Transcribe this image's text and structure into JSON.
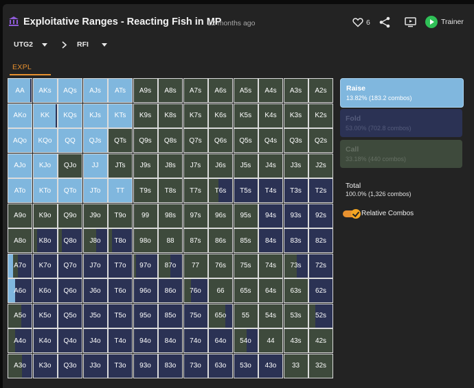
{
  "header": {
    "title": "Exploitative Ranges - Reacting Fish in MP",
    "time": "12 months ago",
    "likes": "6",
    "trainer_label": "Trainer",
    "icons": [
      "library-icon",
      "heart-icon",
      "share-icon",
      "screen-icon",
      "play-icon"
    ]
  },
  "breadcrumbs": {
    "position": "UTG2",
    "action": "RFI"
  },
  "tabs": [
    {
      "label": "EXPL",
      "active": true
    }
  ],
  "colors": {
    "raise": "#80b7de",
    "fold": "#2b3254",
    "call": "#3e4a3c",
    "accent": "#e8912f"
  },
  "legend": {
    "items": [
      {
        "name": "Raise",
        "value": "13.82% (183.2 combos)"
      },
      {
        "name": "Fold",
        "value": "53.00% (702.8 combos)"
      },
      {
        "name": "Call",
        "value": "33.18% (440 combos)"
      }
    ],
    "total_label": "Total",
    "total_value": "100.0% (1,326 combos)",
    "relative_label": "Relative Combos",
    "relative_on": true
  },
  "grid": {
    "rows": [
      [
        {
          "hand": "AA",
          "r": 0.95,
          "c": 0
        },
        {
          "hand": "AKs",
          "r": 1,
          "c": 0
        },
        {
          "hand": "AQs",
          "r": 1,
          "c": 0
        },
        {
          "hand": "AJs",
          "r": 1,
          "c": 0
        },
        {
          "hand": "ATs",
          "r": 1,
          "c": 0
        },
        {
          "hand": "A9s",
          "r": 0,
          "c": 1
        },
        {
          "hand": "A8s",
          "r": 0,
          "c": 1
        },
        {
          "hand": "A7s",
          "r": 0,
          "c": 1
        },
        {
          "hand": "A6s",
          "r": 0,
          "c": 1
        },
        {
          "hand": "A5s",
          "r": 0,
          "c": 1
        },
        {
          "hand": "A4s",
          "r": 0,
          "c": 1
        },
        {
          "hand": "A3s",
          "r": 0,
          "c": 1
        },
        {
          "hand": "A2s",
          "r": 0,
          "c": 1
        }
      ],
      [
        {
          "hand": "AKo",
          "r": 1,
          "c": 0
        },
        {
          "hand": "KK",
          "r": 0.95,
          "c": 0
        },
        {
          "hand": "KQs",
          "r": 1,
          "c": 0
        },
        {
          "hand": "KJs",
          "r": 1,
          "c": 0
        },
        {
          "hand": "KTs",
          "r": 1,
          "c": 0
        },
        {
          "hand": "K9s",
          "r": 0,
          "c": 1
        },
        {
          "hand": "K8s",
          "r": 0,
          "c": 1
        },
        {
          "hand": "K7s",
          "r": 0,
          "c": 1
        },
        {
          "hand": "K6s",
          "r": 0,
          "c": 1
        },
        {
          "hand": "K5s",
          "r": 0,
          "c": 1
        },
        {
          "hand": "K4s",
          "r": 0,
          "c": 1
        },
        {
          "hand": "K3s",
          "r": 0,
          "c": 1
        },
        {
          "hand": "K2s",
          "r": 0,
          "c": 1
        }
      ],
      [
        {
          "hand": "AQo",
          "r": 1,
          "c": 0
        },
        {
          "hand": "KQo",
          "r": 1,
          "c": 0
        },
        {
          "hand": "QQ",
          "r": 1,
          "c": 0
        },
        {
          "hand": "QJs",
          "r": 1,
          "c": 0
        },
        {
          "hand": "QTs",
          "r": 0,
          "c": 1
        },
        {
          "hand": "Q9s",
          "r": 0,
          "c": 1
        },
        {
          "hand": "Q8s",
          "r": 0,
          "c": 1
        },
        {
          "hand": "Q7s",
          "r": 0,
          "c": 1
        },
        {
          "hand": "Q6s",
          "r": 0,
          "c": 1
        },
        {
          "hand": "Q5s",
          "r": 0,
          "c": 1
        },
        {
          "hand": "Q4s",
          "r": 0,
          "c": 1
        },
        {
          "hand": "Q3s",
          "r": 0,
          "c": 1
        },
        {
          "hand": "Q2s",
          "r": 0,
          "c": 1
        }
      ],
      [
        {
          "hand": "AJo",
          "r": 1,
          "c": 0
        },
        {
          "hand": "KJo",
          "r": 1,
          "c": 0
        },
        {
          "hand": "QJo",
          "r": 0,
          "c": 1
        },
        {
          "hand": "JJ",
          "r": 1,
          "c": 0
        },
        {
          "hand": "JTs",
          "r": 0,
          "c": 1
        },
        {
          "hand": "J9s",
          "r": 0,
          "c": 1
        },
        {
          "hand": "J8s",
          "r": 0,
          "c": 1
        },
        {
          "hand": "J7s",
          "r": 0,
          "c": 1
        },
        {
          "hand": "J6s",
          "r": 0,
          "c": 1
        },
        {
          "hand": "J5s",
          "r": 0,
          "c": 1
        },
        {
          "hand": "J4s",
          "r": 0,
          "c": 1
        },
        {
          "hand": "J3s",
          "r": 0,
          "c": 1
        },
        {
          "hand": "J2s",
          "r": 0,
          "c": 1
        }
      ],
      [
        {
          "hand": "ATo",
          "r": 1,
          "c": 0
        },
        {
          "hand": "KTo",
          "r": 1,
          "c": 0
        },
        {
          "hand": "QTo",
          "r": 1,
          "c": 0
        },
        {
          "hand": "JTo",
          "r": 1,
          "c": 0
        },
        {
          "hand": "TT",
          "r": 1,
          "c": 0
        },
        {
          "hand": "T9s",
          "r": 0,
          "c": 1
        },
        {
          "hand": "T8s",
          "r": 0,
          "c": 1
        },
        {
          "hand": "T7s",
          "r": 0,
          "c": 1
        },
        {
          "hand": "T6s",
          "r": 0,
          "c": 0.4
        },
        {
          "hand": "T5s",
          "r": 0,
          "c": 0
        },
        {
          "hand": "T4s",
          "r": 0,
          "c": 0
        },
        {
          "hand": "T3s",
          "r": 0,
          "c": 0
        },
        {
          "hand": "T2s",
          "r": 0,
          "c": 0
        }
      ],
      [
        {
          "hand": "A9o",
          "r": 0,
          "c": 1
        },
        {
          "hand": "K9o",
          "r": 0,
          "c": 1
        },
        {
          "hand": "Q9o",
          "r": 0,
          "c": 1
        },
        {
          "hand": "J9o",
          "r": 0,
          "c": 1
        },
        {
          "hand": "T9o",
          "r": 0,
          "c": 1
        },
        {
          "hand": "99",
          "r": 0,
          "c": 1
        },
        {
          "hand": "98s",
          "r": 0,
          "c": 1
        },
        {
          "hand": "97s",
          "r": 0,
          "c": 1
        },
        {
          "hand": "96s",
          "r": 0,
          "c": 1
        },
        {
          "hand": "95s",
          "r": 0,
          "c": 1
        },
        {
          "hand": "94s",
          "r": 0,
          "c": 0
        },
        {
          "hand": "93s",
          "r": 0,
          "c": 0
        },
        {
          "hand": "92s",
          "r": 0,
          "c": 0
        }
      ],
      [
        {
          "hand": "A8o",
          "r": 0,
          "c": 1
        },
        {
          "hand": "K8o",
          "r": 0,
          "c": 0.15
        },
        {
          "hand": "Q8o",
          "r": 0,
          "c": 0.15
        },
        {
          "hand": "J8o",
          "r": 0,
          "c": 0.55
        },
        {
          "hand": "T8o",
          "r": 0,
          "c": 0.15
        },
        {
          "hand": "98o",
          "r": 0,
          "c": 1
        },
        {
          "hand": "88",
          "r": 0,
          "c": 1
        },
        {
          "hand": "87s",
          "r": 0,
          "c": 1
        },
        {
          "hand": "86s",
          "r": 0,
          "c": 1
        },
        {
          "hand": "85s",
          "r": 0,
          "c": 1
        },
        {
          "hand": "84s",
          "r": 0,
          "c": 0
        },
        {
          "hand": "83s",
          "r": 0,
          "c": 0
        },
        {
          "hand": "82s",
          "r": 0,
          "c": 0
        }
      ],
      [
        {
          "hand": "A7o",
          "r": 0.2,
          "c": 0.2
        },
        {
          "hand": "K7o",
          "r": 0,
          "c": 0
        },
        {
          "hand": "Q7o",
          "r": 0,
          "c": 0
        },
        {
          "hand": "J7o",
          "r": 0,
          "c": 0
        },
        {
          "hand": "T7o",
          "r": 0,
          "c": 0
        },
        {
          "hand": "97o",
          "r": 0,
          "c": 0.1
        },
        {
          "hand": "87o",
          "r": 0,
          "c": 0.5
        },
        {
          "hand": "77",
          "r": 0,
          "c": 1
        },
        {
          "hand": "76s",
          "r": 0,
          "c": 1
        },
        {
          "hand": "75s",
          "r": 0,
          "c": 1
        },
        {
          "hand": "74s",
          "r": 0,
          "c": 1
        },
        {
          "hand": "73s",
          "r": 0,
          "c": 0.55
        },
        {
          "hand": "72s",
          "r": 0,
          "c": 0
        }
      ],
      [
        {
          "hand": "A6o",
          "r": 0.3,
          "c": 0
        },
        {
          "hand": "K6o",
          "r": 0,
          "c": 0
        },
        {
          "hand": "Q6o",
          "r": 0,
          "c": 0
        },
        {
          "hand": "J6o",
          "r": 0,
          "c": 0
        },
        {
          "hand": "T6o",
          "r": 0,
          "c": 0
        },
        {
          "hand": "96o",
          "r": 0,
          "c": 0
        },
        {
          "hand": "86o",
          "r": 0,
          "c": 0
        },
        {
          "hand": "76o",
          "r": 0,
          "c": 0.3
        },
        {
          "hand": "66",
          "r": 0,
          "c": 1
        },
        {
          "hand": "65s",
          "r": 0,
          "c": 1
        },
        {
          "hand": "64s",
          "r": 0,
          "c": 1
        },
        {
          "hand": "63s",
          "r": 0,
          "c": 1
        },
        {
          "hand": "62s",
          "r": 0,
          "c": 0
        }
      ],
      [
        {
          "hand": "A5o",
          "r": 0,
          "c": 0.55
        },
        {
          "hand": "K5o",
          "r": 0,
          "c": 0
        },
        {
          "hand": "Q5o",
          "r": 0,
          "c": 0
        },
        {
          "hand": "J5o",
          "r": 0,
          "c": 0
        },
        {
          "hand": "T5o",
          "r": 0,
          "c": 0
        },
        {
          "hand": "95o",
          "r": 0,
          "c": 0
        },
        {
          "hand": "85o",
          "r": 0,
          "c": 0
        },
        {
          "hand": "75o",
          "r": 0,
          "c": 0
        },
        {
          "hand": "65o",
          "r": 0,
          "c": 0.7
        },
        {
          "hand": "55",
          "r": 0,
          "c": 1
        },
        {
          "hand": "54s",
          "r": 0,
          "c": 1
        },
        {
          "hand": "53s",
          "r": 0,
          "c": 1
        },
        {
          "hand": "52s",
          "r": 0,
          "c": 0.25
        }
      ],
      [
        {
          "hand": "A4o",
          "r": 0,
          "c": 0.3
        },
        {
          "hand": "K4o",
          "r": 0,
          "c": 0
        },
        {
          "hand": "Q4o",
          "r": 0,
          "c": 0
        },
        {
          "hand": "J4o",
          "r": 0,
          "c": 0
        },
        {
          "hand": "T4o",
          "r": 0,
          "c": 0
        },
        {
          "hand": "94o",
          "r": 0,
          "c": 0
        },
        {
          "hand": "84o",
          "r": 0,
          "c": 0
        },
        {
          "hand": "74o",
          "r": 0,
          "c": 0
        },
        {
          "hand": "64o",
          "r": 0,
          "c": 0
        },
        {
          "hand": "54o",
          "r": 0,
          "c": 0.55
        },
        {
          "hand": "44",
          "r": 0,
          "c": 1
        },
        {
          "hand": "43s",
          "r": 0,
          "c": 1
        },
        {
          "hand": "42s",
          "r": 0,
          "c": 1
        }
      ],
      [
        {
          "hand": "A3o",
          "r": 0,
          "c": 0.6
        },
        {
          "hand": "K3o",
          "r": 0,
          "c": 0
        },
        {
          "hand": "Q3o",
          "r": 0,
          "c": 0
        },
        {
          "hand": "J3o",
          "r": 0,
          "c": 0
        },
        {
          "hand": "T3o",
          "r": 0,
          "c": 0
        },
        {
          "hand": "93o",
          "r": 0,
          "c": 0
        },
        {
          "hand": "83o",
          "r": 0,
          "c": 0
        },
        {
          "hand": "73o",
          "r": 0,
          "c": 0
        },
        {
          "hand": "63o",
          "r": 0,
          "c": 0
        },
        {
          "hand": "53o",
          "r": 0,
          "c": 0
        },
        {
          "hand": "43o",
          "r": 0,
          "c": 0
        },
        {
          "hand": "33",
          "r": 0,
          "c": 1
        },
        {
          "hand": "32s",
          "r": 0,
          "c": 1
        }
      ]
    ]
  }
}
